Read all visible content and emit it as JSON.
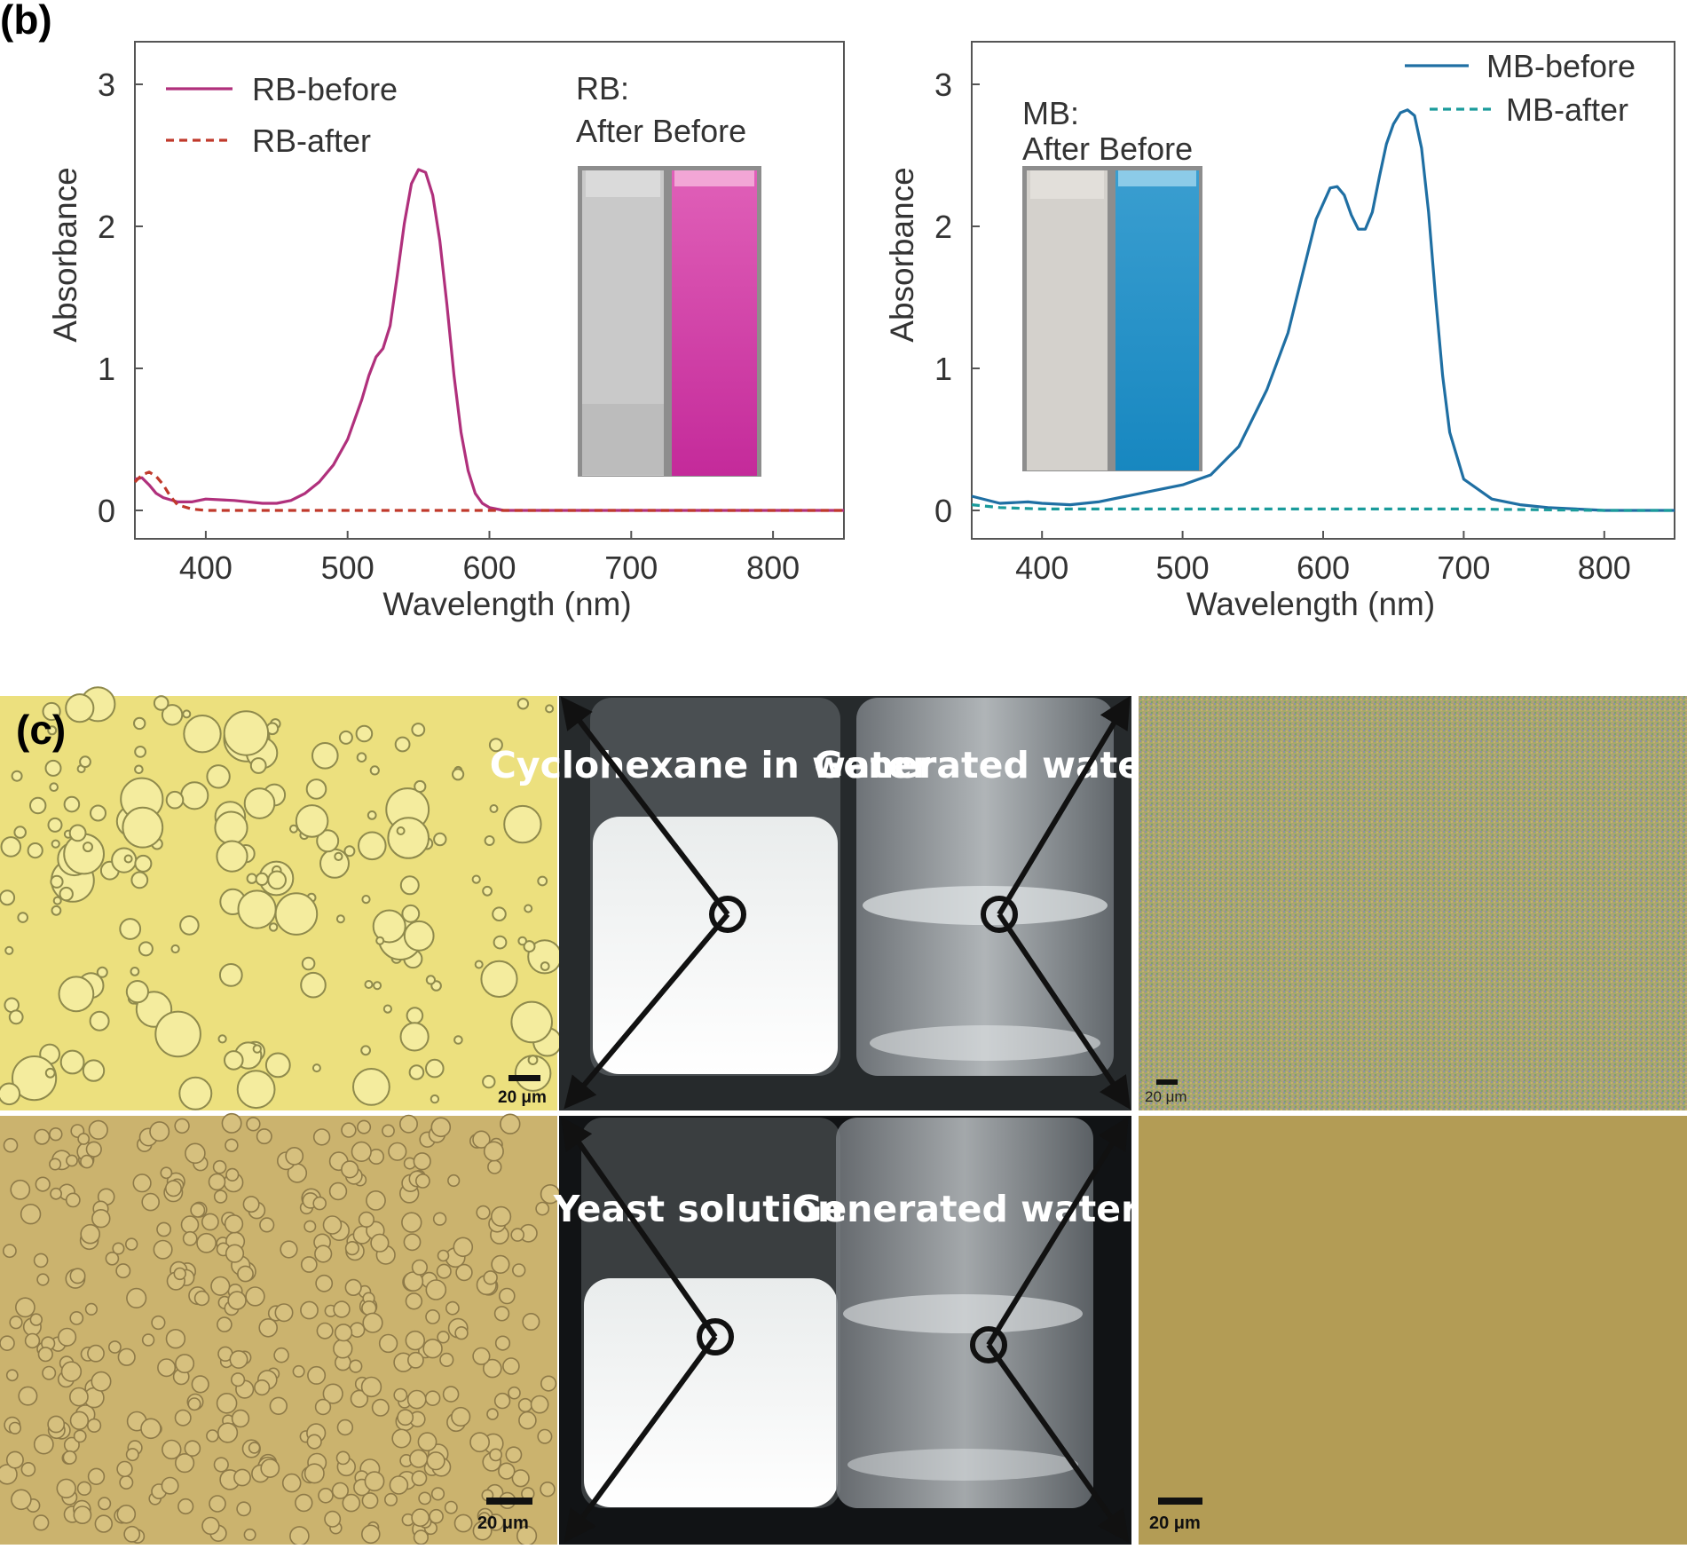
{
  "panel_b_label": "(b)",
  "panel_c_label": "(c)",
  "colors": {
    "rb": "#b0307c",
    "rb_after": "#c0392b",
    "mb": "#1f6fa3",
    "mb_after": "#1a9b9b",
    "axis": "#555555"
  },
  "chart_data": [
    {
      "type": "line",
      "xlabel": "Wavelength (nm)",
      "ylabel": "Absorbance",
      "xlim": [
        350,
        850
      ],
      "ylim": [
        -0.2,
        3.3
      ],
      "xticks": [
        400,
        500,
        600,
        700,
        800
      ],
      "yticks": [
        0,
        1,
        2,
        3
      ],
      "legend_position": "top-left",
      "inset_title": "RB:",
      "inset_labels": "After Before",
      "series": [
        {
          "name": "RB-before",
          "style": "solid",
          "x": [
            350,
            355,
            360,
            365,
            370,
            380,
            390,
            400,
            420,
            440,
            450,
            460,
            470,
            480,
            490,
            500,
            510,
            515,
            520,
            525,
            530,
            535,
            540,
            545,
            550,
            555,
            560,
            565,
            570,
            575,
            580,
            585,
            590,
            595,
            600,
            610,
            650,
            700,
            750,
            800,
            850
          ],
          "y": [
            0.22,
            0.23,
            0.18,
            0.12,
            0.09,
            0.06,
            0.06,
            0.08,
            0.07,
            0.05,
            0.05,
            0.07,
            0.12,
            0.2,
            0.32,
            0.5,
            0.78,
            0.95,
            1.08,
            1.14,
            1.3,
            1.65,
            2.02,
            2.3,
            2.4,
            2.38,
            2.22,
            1.9,
            1.45,
            0.95,
            0.55,
            0.28,
            0.12,
            0.05,
            0.02,
            0.0,
            0.0,
            0.0,
            0.0,
            0.0,
            0.0
          ]
        },
        {
          "name": "RB-after",
          "style": "dashed",
          "x": [
            350,
            355,
            360,
            365,
            370,
            375,
            380,
            390,
            400,
            500,
            600,
            700,
            800,
            850
          ],
          "y": [
            0.2,
            0.25,
            0.27,
            0.24,
            0.18,
            0.1,
            0.04,
            0.01,
            0.0,
            0.0,
            0.0,
            0.0,
            0.0,
            0.0
          ]
        }
      ]
    },
    {
      "type": "line",
      "xlabel": "Wavelength (nm)",
      "ylabel": "Absorbance",
      "xlim": [
        350,
        850
      ],
      "ylim": [
        -0.2,
        3.3
      ],
      "xticks": [
        400,
        500,
        600,
        700,
        800
      ],
      "yticks": [
        0,
        1,
        2,
        3
      ],
      "legend_position": "top-right",
      "inset_title": "MB:",
      "inset_labels": "After Before",
      "series": [
        {
          "name": "MB-before",
          "style": "solid",
          "x": [
            350,
            370,
            390,
            400,
            420,
            440,
            460,
            480,
            500,
            520,
            540,
            560,
            575,
            585,
            595,
            605,
            610,
            615,
            620,
            625,
            630,
            635,
            640,
            645,
            650,
            655,
            660,
            665,
            670,
            675,
            680,
            685,
            690,
            700,
            720,
            740,
            760,
            780,
            800,
            820,
            850
          ],
          "y": [
            0.1,
            0.05,
            0.06,
            0.05,
            0.04,
            0.06,
            0.1,
            0.14,
            0.18,
            0.25,
            0.45,
            0.85,
            1.25,
            1.65,
            2.05,
            2.27,
            2.28,
            2.22,
            2.08,
            1.98,
            1.98,
            2.1,
            2.35,
            2.58,
            2.72,
            2.8,
            2.82,
            2.78,
            2.55,
            2.1,
            1.5,
            0.95,
            0.55,
            0.22,
            0.08,
            0.04,
            0.02,
            0.01,
            0.0,
            0.0,
            0.0
          ]
        },
        {
          "name": "MB-after",
          "style": "dashed",
          "x": [
            350,
            370,
            400,
            450,
            500,
            600,
            700,
            800,
            850
          ],
          "y": [
            0.04,
            0.02,
            0.01,
            0.01,
            0.01,
            0.01,
            0.01,
            0.0,
            0.0
          ]
        }
      ]
    }
  ],
  "photos": {
    "top_left_label": "Cyclohexane in water",
    "top_right_label": "Generated water",
    "bottom_left_label": "Yeast solution",
    "bottom_right_label": "Generated water"
  },
  "scale_bars": {
    "tl": "20 μm",
    "tr": "20 μm",
    "bl": "20 μm",
    "br": "20 μm"
  }
}
